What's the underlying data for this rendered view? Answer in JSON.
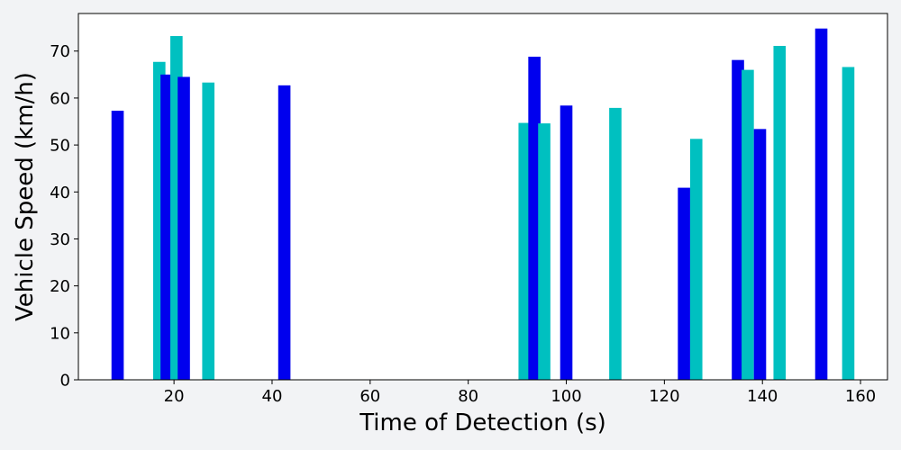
{
  "chart_data": {
    "type": "bar",
    "xlabel": "Time of Detection (s)",
    "ylabel": "Vehicle Speed (km/h)",
    "xlim": [
      0.5,
      165.5
    ],
    "ylim": [
      0,
      78
    ],
    "xticks": [
      20,
      40,
      60,
      80,
      100,
      120,
      140,
      160
    ],
    "yticks": [
      0,
      10,
      20,
      30,
      40,
      50,
      60,
      70
    ],
    "bar_width": 2.5,
    "grid": false,
    "colors": {
      "blue": "#0000ee",
      "cyan": "#00c0c0"
    },
    "bars": [
      {
        "x": 8.5,
        "value": 57.3,
        "color": "blue"
      },
      {
        "x": 17.0,
        "value": 67.7,
        "color": "cyan"
      },
      {
        "x": 18.5,
        "value": 65.0,
        "color": "blue"
      },
      {
        "x": 20.5,
        "value": 73.2,
        "color": "cyan"
      },
      {
        "x": 22.0,
        "value": 64.5,
        "color": "blue"
      },
      {
        "x": 27.0,
        "value": 63.3,
        "color": "cyan"
      },
      {
        "x": 42.5,
        "value": 62.7,
        "color": "blue"
      },
      {
        "x": 91.5,
        "value": 54.7,
        "color": "cyan"
      },
      {
        "x": 93.5,
        "value": 68.8,
        "color": "blue"
      },
      {
        "x": 95.5,
        "value": 54.6,
        "color": "cyan"
      },
      {
        "x": 100.0,
        "value": 58.4,
        "color": "blue"
      },
      {
        "x": 110.0,
        "value": 57.9,
        "color": "cyan"
      },
      {
        "x": 124.0,
        "value": 40.9,
        "color": "blue"
      },
      {
        "x": 126.5,
        "value": 51.3,
        "color": "cyan"
      },
      {
        "x": 135.0,
        "value": 68.1,
        "color": "blue"
      },
      {
        "x": 137.0,
        "value": 66.0,
        "color": "cyan"
      },
      {
        "x": 139.5,
        "value": 53.4,
        "color": "blue"
      },
      {
        "x": 143.5,
        "value": 71.1,
        "color": "cyan"
      },
      {
        "x": 152.0,
        "value": 74.8,
        "color": "blue"
      },
      {
        "x": 157.5,
        "value": 66.6,
        "color": "cyan"
      }
    ]
  }
}
